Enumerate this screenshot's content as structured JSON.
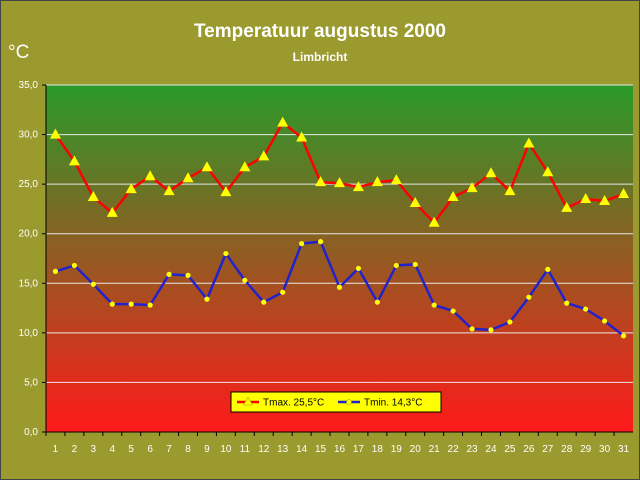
{
  "colors": {
    "background": "#9a9a2e",
    "plot_top": "#2a9a2a",
    "plot_bottom": "#ff1a1a",
    "tmax_line": "#ff0000",
    "tmin_line": "#2222cc",
    "marker": "#ffff00",
    "text": "#ffffff"
  },
  "chart_data": {
    "type": "line",
    "title": "Temperatuur augustus 2000",
    "subtitle": "Limbricht",
    "ylabel": "°C",
    "xlabel": "",
    "ylim": [
      0,
      35
    ],
    "yticks": [
      "0,0",
      "5,0",
      "10,0",
      "15,0",
      "20,0",
      "25,0",
      "30,0",
      "35,0"
    ],
    "ytick_values": [
      0,
      5,
      10,
      15,
      20,
      25,
      30,
      35
    ],
    "grid": true,
    "legend_position": "bottom-center",
    "categories": [
      "1",
      "2",
      "3",
      "4",
      "5",
      "6",
      "7",
      "8",
      "9",
      "10",
      "11",
      "12",
      "13",
      "14",
      "15",
      "16",
      "17",
      "18",
      "19",
      "20",
      "21",
      "22",
      "23",
      "24",
      "25",
      "26",
      "27",
      "28",
      "29",
      "30",
      "31"
    ],
    "series": [
      {
        "name": "Tmax. 25,5°C",
        "color": "#ff0000",
        "marker": "triangle",
        "values": [
          30.0,
          27.3,
          23.7,
          22.1,
          24.5,
          25.8,
          24.3,
          25.6,
          26.7,
          24.2,
          26.7,
          27.8,
          31.2,
          29.7,
          25.2,
          25.1,
          24.7,
          25.2,
          25.4,
          23.1,
          21.1,
          23.7,
          24.6,
          26.1,
          24.3,
          29.1,
          26.2,
          22.6,
          23.5,
          23.3,
          24.0
        ]
      },
      {
        "name": "Tmin. 14,3°C",
        "color": "#2222cc",
        "marker": "circle",
        "values": [
          16.2,
          16.8,
          14.9,
          12.9,
          12.9,
          12.8,
          15.9,
          15.8,
          13.4,
          18.0,
          15.3,
          13.1,
          14.1,
          19.0,
          19.2,
          14.6,
          16.5,
          13.1,
          16.8,
          16.9,
          12.8,
          12.2,
          10.4,
          10.3,
          11.1,
          13.6,
          16.4,
          13.0,
          12.4,
          11.2,
          9.7
        ]
      }
    ]
  }
}
